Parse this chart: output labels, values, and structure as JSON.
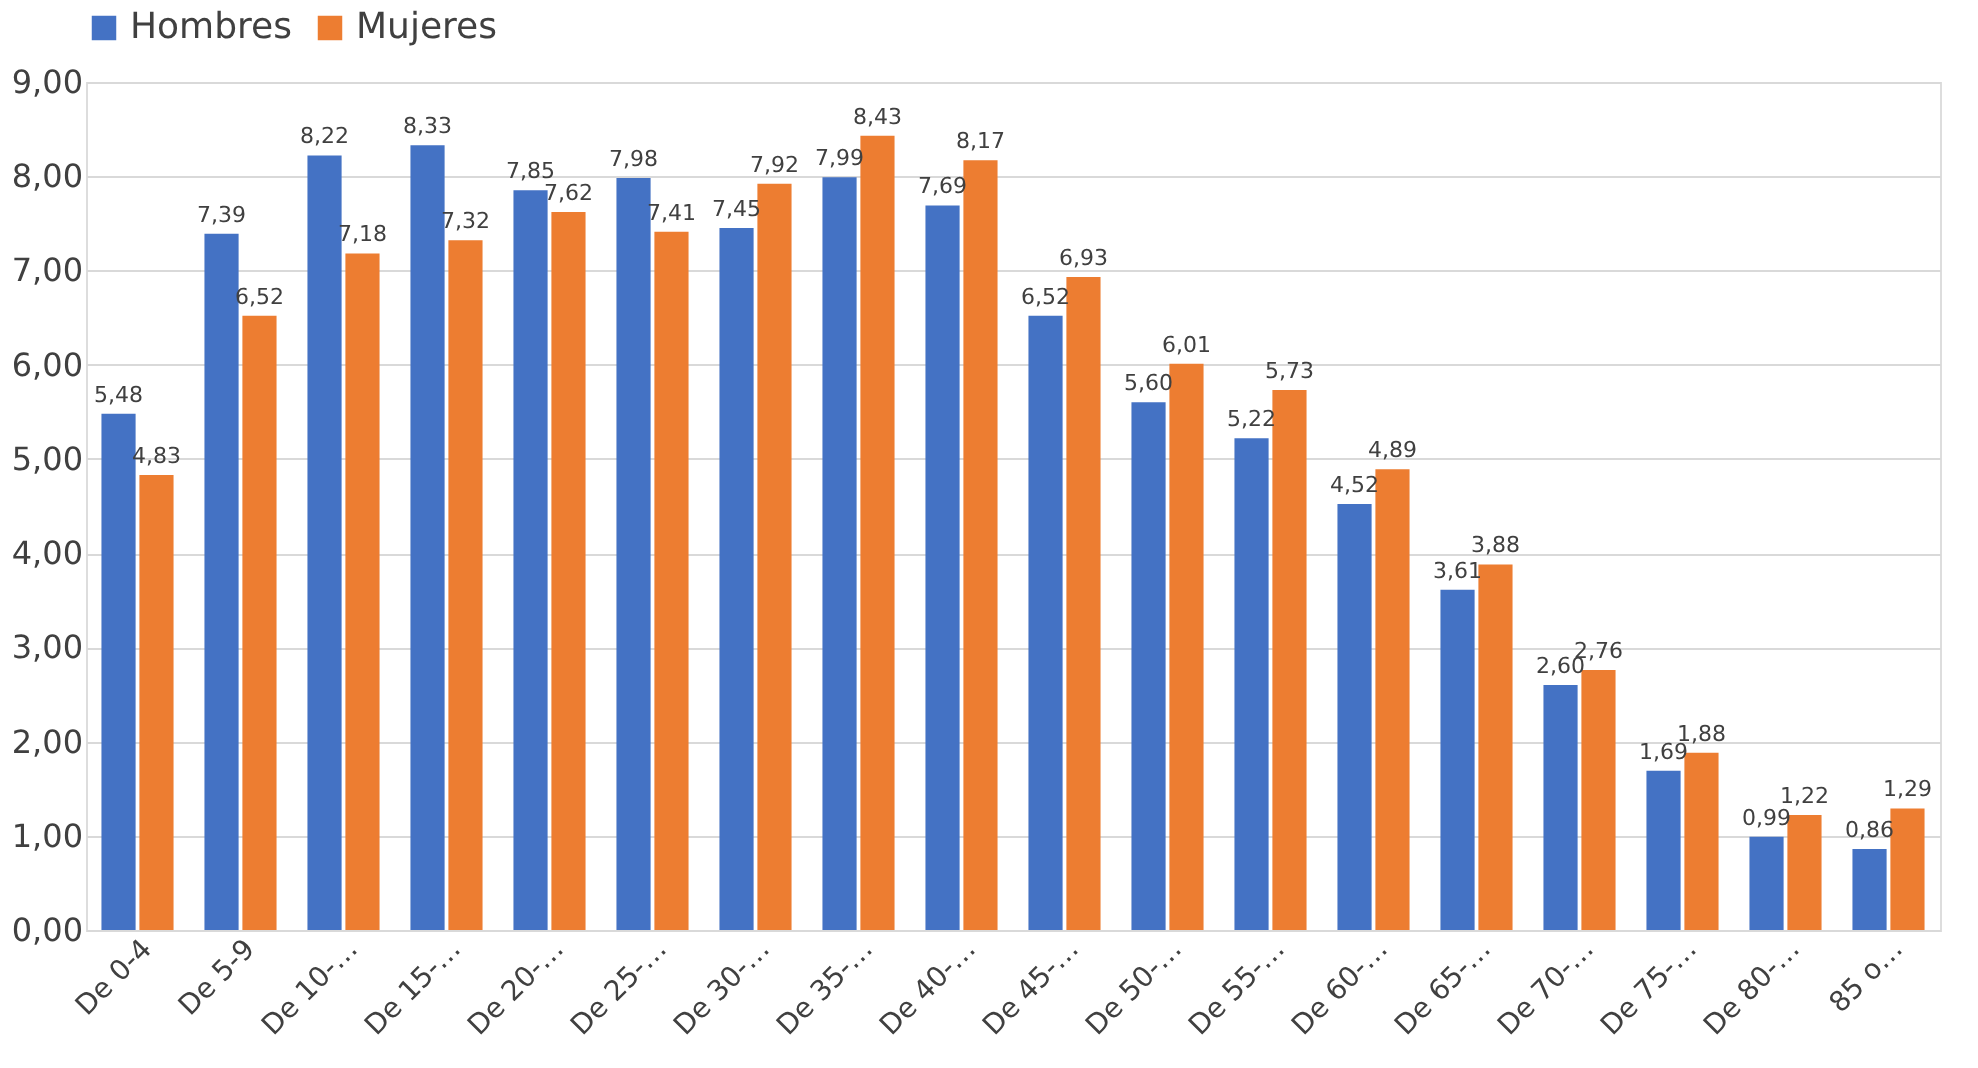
{
  "chart_data": {
    "type": "bar",
    "categories": [
      "De 0-4",
      "De 5-9",
      "De 10-…",
      "De 15-…",
      "De 20-…",
      "De 25-…",
      "De 30-…",
      "De 35-…",
      "De 40-…",
      "De 45-…",
      "De 50-…",
      "De 55-…",
      "De 60-…",
      "De 65-…",
      "De 70-…",
      "De 75-…",
      "De 80-…",
      "85 o…"
    ],
    "series": [
      {
        "name": "Hombres",
        "color": "#4472c4",
        "values": [
          5.48,
          7.39,
          8.22,
          8.33,
          7.85,
          7.98,
          7.45,
          7.99,
          7.69,
          6.52,
          5.6,
          5.22,
          4.52,
          3.61,
          2.6,
          1.69,
          0.99,
          0.86
        ],
        "value_labels": [
          "5,48",
          "7,39",
          "8,22",
          "8,33",
          "7,85",
          "7,98",
          "7,45",
          "7,99",
          "7,69",
          "6,52",
          "5,60",
          "5,22",
          "4,52",
          "3,61",
          "2,60",
          "1,69",
          "0,99",
          "0,86"
        ]
      },
      {
        "name": "Mujeres",
        "color": "#ed7d31",
        "values": [
          4.83,
          6.52,
          7.18,
          7.32,
          7.62,
          7.41,
          7.92,
          8.43,
          8.17,
          6.93,
          6.01,
          5.73,
          4.89,
          3.88,
          2.76,
          1.88,
          1.22,
          1.29
        ],
        "value_labels": [
          "4,83",
          "6,52",
          "7,18",
          "7,32",
          "7,62",
          "7,41",
          "7,92",
          "8,43",
          "8,17",
          "6,93",
          "6,01",
          "5,73",
          "4,89",
          "3,88",
          "2,76",
          "1,88",
          "1,22",
          "1,29"
        ]
      }
    ],
    "ylim": [
      0,
      9
    ],
    "yticks": [
      {
        "value": 0,
        "label": "0,00"
      },
      {
        "value": 1,
        "label": "1,00"
      },
      {
        "value": 2,
        "label": "2,00"
      },
      {
        "value": 3,
        "label": "3,00"
      },
      {
        "value": 4,
        "label": "4,00"
      },
      {
        "value": 5,
        "label": "5,00"
      },
      {
        "value": 6,
        "label": "6,00"
      },
      {
        "value": 7,
        "label": "7,00"
      },
      {
        "value": 8,
        "label": "8,00"
      },
      {
        "value": 9,
        "label": "9,00"
      }
    ],
    "grid": "y",
    "legend": "top"
  }
}
